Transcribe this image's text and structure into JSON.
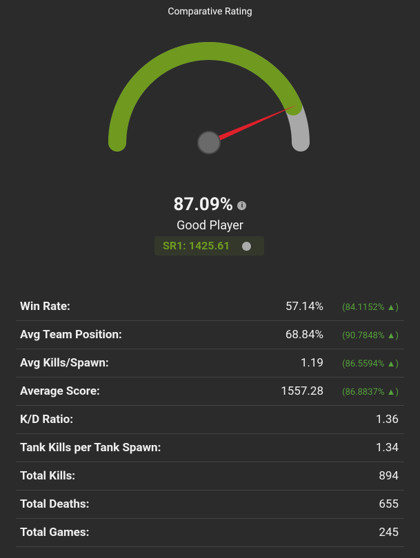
{
  "gauge": {
    "title": "Comparative Rating",
    "value": 87.09,
    "scale": [
      0,
      100
    ],
    "value_label": "87.09%",
    "rating": "Good Player",
    "sr": "SR1: 1425.61"
  },
  "stats": [
    {
      "label": "Win Rate:",
      "value": "57.14%",
      "percentile": "(84.1152% ▲)"
    },
    {
      "label": "Avg Team Position:",
      "value": "68.84%",
      "percentile": "(90.7848% ▲)"
    },
    {
      "label": "Avg Kills/Spawn:",
      "value": "1.19",
      "percentile": "(86.5594% ▲)"
    },
    {
      "label": "Average Score:",
      "value": "1557.28",
      "percentile": "(86.8837% ▲)"
    },
    {
      "label": "K/D Ratio:",
      "value": "1.36"
    },
    {
      "label": "Tank Kills per Tank Spawn:",
      "value": "1.34"
    },
    {
      "label": "Total Kills:",
      "value": "894"
    },
    {
      "label": "Total Deaths:",
      "value": "655"
    },
    {
      "label": "Total Games:",
      "value": "245"
    }
  ]
}
